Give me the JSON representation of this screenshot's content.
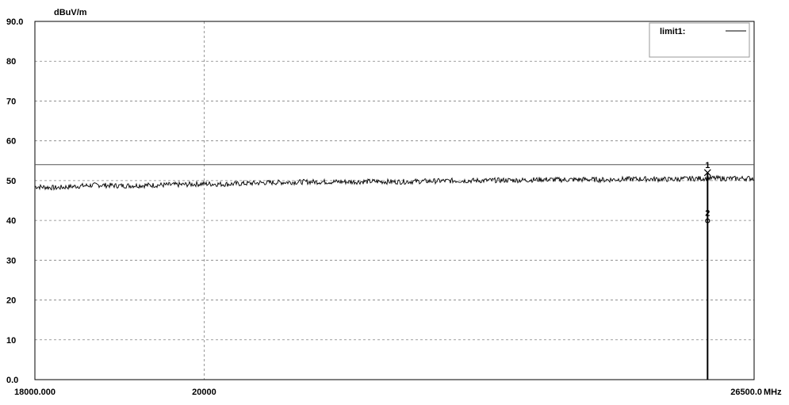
{
  "chart_data": {
    "type": "line",
    "title": "",
    "ylabel": "dBuV/m",
    "xlabel": "",
    "x_unit": "MHz",
    "xlim": [
      18000,
      26500
    ],
    "ylim": [
      0,
      90
    ],
    "x_ticks": [
      {
        "value": 18000,
        "label": "18000.000"
      },
      {
        "value": 20000,
        "label": "20000"
      },
      {
        "value": 26500,
        "label": "26500.0"
      }
    ],
    "y_ticks": [
      {
        "value": 0,
        "label": "0.0"
      },
      {
        "value": 10,
        "label": "10"
      },
      {
        "value": 20,
        "label": "20"
      },
      {
        "value": 30,
        "label": "30"
      },
      {
        "value": 40,
        "label": "40"
      },
      {
        "value": 50,
        "label": "50"
      },
      {
        "value": 60,
        "label": "60"
      },
      {
        "value": 70,
        "label": "70"
      },
      {
        "value": 80,
        "label": "80"
      },
      {
        "value": 90,
        "label": "90.0"
      }
    ],
    "grid": true,
    "legend": {
      "position": "top-right",
      "entries": [
        "limit1:"
      ]
    },
    "limit_lines": [
      {
        "name": "limit1",
        "value": 54
      }
    ],
    "series": [
      {
        "x": [
          18000,
          18250,
          18500,
          18750,
          19000,
          19250,
          19500,
          19750,
          20000,
          20250,
          20500,
          20750,
          21000,
          21250,
          21500,
          21750,
          22000,
          22250,
          22500,
          22750,
          23000,
          23250,
          23500,
          23750,
          24000,
          24250,
          24500,
          24750,
          25000,
          25250,
          25500,
          25750,
          26000,
          26250,
          26500
        ],
        "values": [
          48.5,
          48.2,
          48.6,
          48.9,
          48.7,
          48.8,
          48.9,
          49.0,
          49.2,
          49.1,
          49.3,
          49.5,
          49.6,
          49.7,
          49.7,
          49.7,
          49.8,
          49.7,
          49.8,
          49.9,
          50.0,
          50.0,
          50.1,
          50.1,
          50.3,
          50.2,
          50.3,
          50.2,
          50.4,
          50.4,
          50.3,
          50.5,
          50.6,
          50.5,
          50.6
        ]
      }
    ],
    "markers": [
      {
        "label": "1",
        "x": 25950,
        "y": 52.0
      },
      {
        "label": "2",
        "x": 25950,
        "y": 40.5
      }
    ]
  }
}
